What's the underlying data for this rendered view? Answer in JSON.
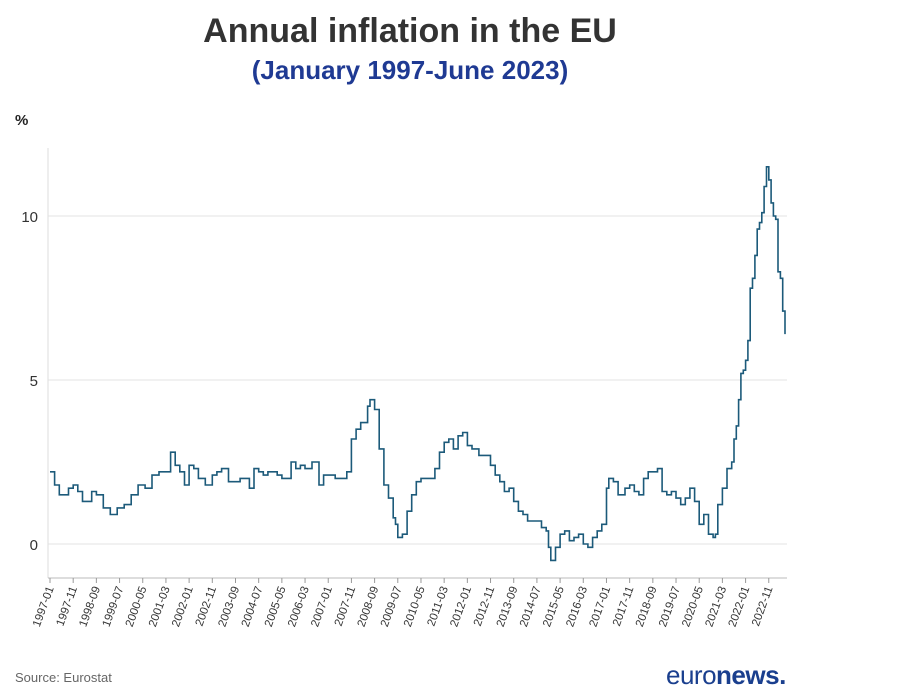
{
  "header": {
    "title": "Annual inflation in the EU",
    "subtitle": "(January 1997-June 2023)"
  },
  "unit_label": "%",
  "source": "Source: Eurostat",
  "logo": {
    "part1": "euro",
    "part2": "news",
    "dot": "."
  },
  "colors": {
    "line": "#1c5a7a",
    "title": "#333333",
    "subtitle": "#1f3a93",
    "grid": "#e3e3e3"
  },
  "chart_data": {
    "type": "line",
    "title": "Annual inflation in the EU",
    "subtitle": "(January 1997-June 2023)",
    "ylabel": "%",
    "xlabel": "",
    "ylim": [
      -1,
      12
    ],
    "yticks": [
      0,
      5,
      10
    ],
    "grid": true,
    "legend": "none",
    "x_tick_labels": [
      "1997-01",
      "1997-11",
      "1998-09",
      "1999-07",
      "2000-05",
      "2001-03",
      "2002-01",
      "2002-11",
      "2003-09",
      "2004-07",
      "2005-05",
      "2006-03",
      "2007-01",
      "2007-11",
      "2008-09",
      "2009-07",
      "2010-05",
      "2011-03",
      "2012-01",
      "2012-11",
      "2013-09",
      "2014-07",
      "2015-05",
      "2016-03",
      "2017-01",
      "2017-11",
      "2018-09",
      "2019-07",
      "2020-05",
      "2021-03",
      "2022-01",
      "2022-11"
    ],
    "series": [
      {
        "points": [
          [
            "1997-01",
            2.2
          ],
          [
            "1997-03",
            1.8
          ],
          [
            "1997-05",
            1.5
          ],
          [
            "1997-09",
            1.7
          ],
          [
            "1997-11",
            1.8
          ],
          [
            "1998-01",
            1.6
          ],
          [
            "1998-03",
            1.3
          ],
          [
            "1998-07",
            1.6
          ],
          [
            "1998-09",
            1.5
          ],
          [
            "1998-12",
            1.1
          ],
          [
            "1999-03",
            0.9
          ],
          [
            "1999-06",
            1.1
          ],
          [
            "1999-09",
            1.2
          ],
          [
            "1999-12",
            1.5
          ],
          [
            "2000-03",
            1.8
          ],
          [
            "2000-06",
            1.7
          ],
          [
            "2000-09",
            2.1
          ],
          [
            "2000-12",
            2.2
          ],
          [
            "2001-03",
            2.2
          ],
          [
            "2001-05",
            2.8
          ],
          [
            "2001-07",
            2.4
          ],
          [
            "2001-09",
            2.2
          ],
          [
            "2001-11",
            1.8
          ],
          [
            "2002-01",
            2.4
          ],
          [
            "2002-03",
            2.3
          ],
          [
            "2002-05",
            2.0
          ],
          [
            "2002-08",
            1.8
          ],
          [
            "2002-11",
            2.1
          ],
          [
            "2003-01",
            2.2
          ],
          [
            "2003-03",
            2.3
          ],
          [
            "2003-06",
            1.9
          ],
          [
            "2003-09",
            1.9
          ],
          [
            "2003-11",
            2.0
          ],
          [
            "2004-03",
            1.7
          ],
          [
            "2004-05",
            2.3
          ],
          [
            "2004-07",
            2.2
          ],
          [
            "2004-09",
            2.1
          ],
          [
            "2004-11",
            2.2
          ],
          [
            "2005-03",
            2.1
          ],
          [
            "2005-05",
            2.0
          ],
          [
            "2005-09",
            2.5
          ],
          [
            "2005-11",
            2.3
          ],
          [
            "2006-01",
            2.4
          ],
          [
            "2006-03",
            2.3
          ],
          [
            "2006-06",
            2.5
          ],
          [
            "2006-09",
            1.8
          ],
          [
            "2006-11",
            2.1
          ],
          [
            "2007-01",
            2.1
          ],
          [
            "2007-04",
            2.0
          ],
          [
            "2007-06",
            2.0
          ],
          [
            "2007-09",
            2.2
          ],
          [
            "2007-11",
            3.2
          ],
          [
            "2008-01",
            3.5
          ],
          [
            "2008-03",
            3.7
          ],
          [
            "2008-06",
            4.2
          ],
          [
            "2008-07",
            4.4
          ],
          [
            "2008-09",
            4.1
          ],
          [
            "2008-11",
            2.9
          ],
          [
            "2009-01",
            1.8
          ],
          [
            "2009-03",
            1.4
          ],
          [
            "2009-05",
            0.8
          ],
          [
            "2009-06",
            0.6
          ],
          [
            "2009-07",
            0.2
          ],
          [
            "2009-09",
            0.3
          ],
          [
            "2009-11",
            1.0
          ],
          [
            "2010-01",
            1.5
          ],
          [
            "2010-03",
            1.9
          ],
          [
            "2010-05",
            2.0
          ],
          [
            "2010-08",
            2.0
          ],
          [
            "2010-11",
            2.3
          ],
          [
            "2011-01",
            2.8
          ],
          [
            "2011-03",
            3.1
          ],
          [
            "2011-05",
            3.2
          ],
          [
            "2011-07",
            2.9
          ],
          [
            "2011-09",
            3.3
          ],
          [
            "2011-11",
            3.4
          ],
          [
            "2012-01",
            3.0
          ],
          [
            "2012-03",
            2.9
          ],
          [
            "2012-06",
            2.7
          ],
          [
            "2012-09",
            2.7
          ],
          [
            "2012-11",
            2.4
          ],
          [
            "2013-01",
            2.1
          ],
          [
            "2013-03",
            1.9
          ],
          [
            "2013-05",
            1.6
          ],
          [
            "2013-07",
            1.7
          ],
          [
            "2013-09",
            1.3
          ],
          [
            "2013-11",
            1.0
          ],
          [
            "2014-01",
            0.9
          ],
          [
            "2014-03",
            0.7
          ],
          [
            "2014-06",
            0.7
          ],
          [
            "2014-09",
            0.5
          ],
          [
            "2014-11",
            0.4
          ],
          [
            "2014-12",
            -0.1
          ],
          [
            "2015-01",
            -0.5
          ],
          [
            "2015-03",
            -0.1
          ],
          [
            "2015-05",
            0.3
          ],
          [
            "2015-07",
            0.4
          ],
          [
            "2015-09",
            0.1
          ],
          [
            "2015-11",
            0.2
          ],
          [
            "2016-01",
            0.3
          ],
          [
            "2016-03",
            0.0
          ],
          [
            "2016-05",
            -0.1
          ],
          [
            "2016-07",
            0.2
          ],
          [
            "2016-09",
            0.4
          ],
          [
            "2016-11",
            0.6
          ],
          [
            "2017-01",
            1.7
          ],
          [
            "2017-02",
            2.0
          ],
          [
            "2017-04",
            1.9
          ],
          [
            "2017-06",
            1.5
          ],
          [
            "2017-09",
            1.7
          ],
          [
            "2017-11",
            1.8
          ],
          [
            "2018-01",
            1.6
          ],
          [
            "2018-03",
            1.5
          ],
          [
            "2018-05",
            2.0
          ],
          [
            "2018-07",
            2.2
          ],
          [
            "2018-09",
            2.2
          ],
          [
            "2018-11",
            2.3
          ],
          [
            "2019-01",
            1.6
          ],
          [
            "2019-03",
            1.5
          ],
          [
            "2019-05",
            1.6
          ],
          [
            "2019-07",
            1.4
          ],
          [
            "2019-09",
            1.2
          ],
          [
            "2019-11",
            1.4
          ],
          [
            "2020-01",
            1.7
          ],
          [
            "2020-03",
            1.3
          ],
          [
            "2020-05",
            0.6
          ],
          [
            "2020-07",
            0.9
          ],
          [
            "2020-09",
            0.3
          ],
          [
            "2020-11",
            0.2
          ],
          [
            "2020-12",
            0.3
          ],
          [
            "2021-01",
            1.2
          ],
          [
            "2021-03",
            1.7
          ],
          [
            "2021-05",
            2.3
          ],
          [
            "2021-07",
            2.5
          ],
          [
            "2021-08",
            3.2
          ],
          [
            "2021-09",
            3.6
          ],
          [
            "2021-10",
            4.4
          ],
          [
            "2021-11",
            5.2
          ],
          [
            "2021-12",
            5.3
          ],
          [
            "2022-01",
            5.6
          ],
          [
            "2022-02",
            6.2
          ],
          [
            "2022-03",
            7.8
          ],
          [
            "2022-04",
            8.1
          ],
          [
            "2022-05",
            8.8
          ],
          [
            "2022-06",
            9.6
          ],
          [
            "2022-07",
            9.8
          ],
          [
            "2022-08",
            10.1
          ],
          [
            "2022-09",
            10.9
          ],
          [
            "2022-10",
            11.5
          ],
          [
            "2022-11",
            11.1
          ],
          [
            "2022-12",
            10.4
          ],
          [
            "2023-01",
            10.0
          ],
          [
            "2023-02",
            9.9
          ],
          [
            "2023-03",
            8.3
          ],
          [
            "2023-04",
            8.1
          ],
          [
            "2023-05",
            7.1
          ],
          [
            "2023-06",
            6.4
          ]
        ]
      }
    ]
  }
}
